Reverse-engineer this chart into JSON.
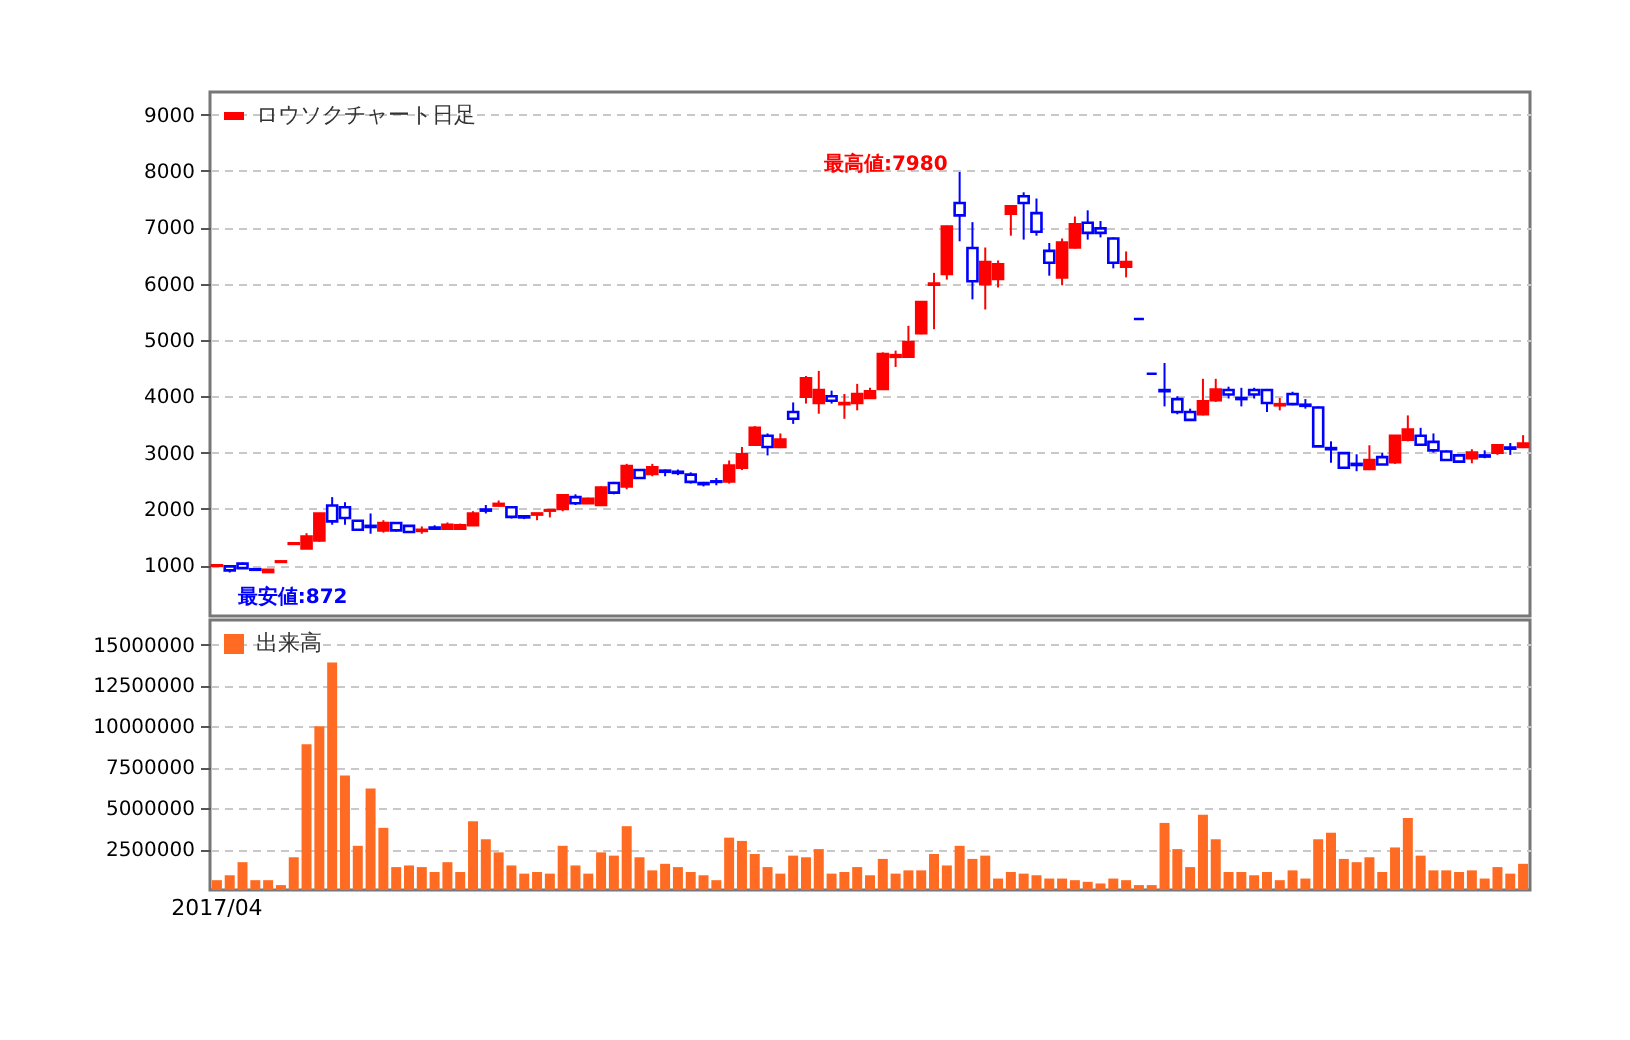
{
  "chart_data": [
    {
      "type": "candlestick",
      "categories": [
        null,
        null,
        null,
        null,
        null,
        null,
        null,
        null,
        null,
        null,
        null,
        null,
        null,
        null,
        null,
        null,
        null,
        null,
        null,
        null,
        null,
        null,
        null,
        null,
        null,
        null,
        null,
        null,
        null,
        null,
        null,
        null,
        null,
        null,
        null,
        null,
        null,
        null,
        null,
        null,
        null,
        null,
        null,
        null,
        null,
        null,
        null,
        null,
        null,
        null,
        null,
        null,
        null,
        null,
        null,
        null,
        null,
        null,
        null,
        null,
        null,
        null,
        null,
        null,
        null,
        null,
        null,
        null,
        null,
        null,
        null,
        null,
        null,
        null,
        null,
        null,
        null,
        null,
        null,
        null,
        null,
        null,
        null,
        null,
        null,
        null,
        null,
        null,
        null,
        null,
        null,
        null,
        null,
        null,
        null,
        null,
        null,
        null,
        null,
        null,
        null,
        null,
        null
      ],
      "series": [
        {
          "name": "ロウソクチャート日足",
          "color": "#ff0000",
          "type": "candlestick",
          "ohlc": [
            [
              990,
              1010,
              980,
              1000
            ],
            [
              980,
              990,
              872,
              910
            ],
            [
              1030,
              1050,
              940,
              950
            ],
            [
              930,
              940,
              900,
              920
            ],
            [
              880,
              930,
              880,
              920
            ],
            [
              1060,
              1080,
              1060,
              1070
            ],
            [
              1380,
              1400,
              1380,
              1390
            ],
            [
              1300,
              1570,
              1290,
              1510
            ],
            [
              1440,
              1930,
              1420,
              1920
            ],
            [
              2060,
              2210,
              1720,
              1780
            ],
            [
              2030,
              2120,
              1720,
              1840
            ],
            [
              1790,
              1800,
              1620,
              1630
            ],
            [
              1700,
              1920,
              1560,
              1680
            ],
            [
              1620,
              1800,
              1580,
              1750
            ],
            [
              1750,
              1760,
              1600,
              1620
            ],
            [
              1700,
              1710,
              1580,
              1590
            ],
            [
              1610,
              1690,
              1560,
              1630
            ],
            [
              1670,
              1710,
              1630,
              1650
            ],
            [
              1650,
              1760,
              1640,
              1720
            ],
            [
              1650,
              1740,
              1630,
              1710
            ],
            [
              1710,
              1960,
              1700,
              1920
            ],
            [
              1990,
              2070,
              1920,
              1970
            ],
            [
              2060,
              2150,
              2040,
              2090
            ],
            [
              2030,
              2050,
              1830,
              1860
            ],
            [
              1870,
              1880,
              1820,
              1850
            ],
            [
              1900,
              1930,
              1800,
              1920
            ],
            [
              1970,
              1990,
              1850,
              1980
            ],
            [
              2000,
              2260,
              1960,
              2240
            ],
            [
              2210,
              2260,
              2070,
              2100
            ],
            [
              2100,
              2200,
              2090,
              2180
            ],
            [
              2070,
              2400,
              2060,
              2380
            ],
            [
              2460,
              2480,
              2260,
              2290
            ],
            [
              2400,
              2800,
              2350,
              2760
            ],
            [
              2690,
              2700,
              2540,
              2550
            ],
            [
              2620,
              2800,
              2580,
              2740
            ],
            [
              2680,
              2700,
              2580,
              2660
            ],
            [
              2660,
              2700,
              2600,
              2640
            ],
            [
              2610,
              2650,
              2450,
              2480
            ],
            [
              2460,
              2480,
              2400,
              2440
            ],
            [
              2490,
              2550,
              2420,
              2480
            ],
            [
              2490,
              2860,
              2450,
              2770
            ],
            [
              2730,
              3100,
              2690,
              2970
            ],
            [
              3140,
              3470,
              3120,
              3440
            ],
            [
              3300,
              3340,
              2950,
              3100
            ],
            [
              3100,
              3340,
              3080,
              3230
            ],
            [
              3720,
              3890,
              3510,
              3600
            ],
            [
              3990,
              4360,
              3870,
              4320
            ],
            [
              3880,
              4450,
              3690,
              4110
            ],
            [
              4000,
              4100,
              3870,
              3920
            ],
            [
              3860,
              4040,
              3600,
              3880
            ],
            [
              3880,
              4220,
              3750,
              4040
            ],
            [
              3970,
              4150,
              3960,
              4090
            ],
            [
              4130,
              4780,
              4110,
              4750
            ],
            [
              4700,
              4810,
              4520,
              4730
            ],
            [
              4700,
              5250,
              4680,
              4960
            ],
            [
              5120,
              5690,
              5100,
              5670
            ],
            [
              5980,
              6190,
              5190,
              6000
            ],
            [
              6170,
              7030,
              6070,
              7010
            ],
            [
              7430,
              7980,
              6750,
              7210
            ],
            [
              6630,
              7090,
              5720,
              6040
            ],
            [
              5990,
              6640,
              5540,
              6380
            ],
            [
              6080,
              6410,
              5930,
              6340
            ],
            [
              7240,
              7380,
              6850,
              7370
            ],
            [
              7550,
              7620,
              6780,
              7430
            ],
            [
              7250,
              7510,
              6850,
              6920
            ],
            [
              6580,
              6720,
              6140,
              6370
            ],
            [
              6110,
              6800,
              5970,
              6730
            ],
            [
              6640,
              7190,
              6620,
              7050
            ],
            [
              7080,
              7300,
              6780,
              6900
            ],
            [
              6980,
              7110,
              6820,
              6900
            ],
            [
              6800,
              6820,
              6270,
              6370
            ],
            [
              6300,
              6570,
              6110,
              6380
            ],
            [
              5370,
              5370,
              5370,
              5370
            ],
            [
              4400,
              4400,
              4400,
              4400
            ],
            [
              4110,
              4590,
              3820,
              4090
            ],
            [
              3950,
              4000,
              3680,
              3720
            ],
            [
              3720,
              3780,
              3560,
              3580
            ],
            [
              3680,
              4310,
              3660,
              3910
            ],
            [
              3930,
              4310,
              3900,
              4120
            ],
            [
              4110,
              4170,
              3960,
              4030
            ],
            [
              3970,
              4150,
              3820,
              3950
            ],
            [
              4110,
              4150,
              3960,
              4030
            ],
            [
              4110,
              4130,
              3720,
              3880
            ],
            [
              3840,
              3970,
              3750,
              3860
            ],
            [
              4040,
              4080,
              3840,
              3860
            ],
            [
              3850,
              3950,
              3780,
              3830
            ],
            [
              3800,
              3820,
              3100,
              3110
            ],
            [
              3080,
              3200,
              2820,
              3060
            ],
            [
              2990,
              3000,
              2720,
              2730
            ],
            [
              2800,
              2970,
              2670,
              2780
            ],
            [
              2710,
              3130,
              2690,
              2870
            ],
            [
              2920,
              3000,
              2780,
              2790
            ],
            [
              2830,
              3310,
              2800,
              3300
            ],
            [
              3230,
              3660,
              3200,
              3410
            ],
            [
              3300,
              3440,
              3120,
              3140
            ],
            [
              3190,
              3340,
              3000,
              3040
            ],
            [
              3020,
              3040,
              2850,
              2870
            ],
            [
              2950,
              2970,
              2830,
              2840
            ],
            [
              2900,
              3060,
              2810,
              3000
            ],
            [
              2950,
              3040,
              2900,
              2930
            ],
            [
              3000,
              3150,
              2960,
              3130
            ],
            [
              3090,
              3170,
              2960,
              3070
            ],
            [
              3100,
              3310,
              3080,
              3160
            ]
          ],
          "colors": [
            "#ff0000",
            "#0000ff",
            "#0000ff",
            "#0000ff",
            "#ff0000",
            "#ff0000",
            "#ff0000",
            "#ff0000",
            "#ff0000",
            "#0000ff",
            "#0000ff",
            "#0000ff",
            "#0000ff",
            "#ff0000",
            "#0000ff",
            "#0000ff",
            "#ff0000",
            "#0000ff",
            "#ff0000",
            "#ff0000",
            "#ff0000",
            "#0000ff",
            "#ff0000",
            "#0000ff",
            "#0000ff",
            "#ff0000",
            "#ff0000",
            "#ff0000",
            "#0000ff",
            "#ff0000",
            "#ff0000",
            "#0000ff",
            "#ff0000",
            "#0000ff",
            "#ff0000",
            "#0000ff",
            "#0000ff",
            "#0000ff",
            "#0000ff",
            "#0000ff",
            "#ff0000",
            "#ff0000",
            "#ff0000",
            "#0000ff",
            "#ff0000",
            "#0000ff",
            "#ff0000",
            "#ff0000",
            "#0000ff",
            "#ff0000",
            "#ff0000",
            "#ff0000",
            "#ff0000",
            "#ff0000",
            "#ff0000",
            "#ff0000",
            "#ff0000",
            "#ff0000",
            "#0000ff",
            "#0000ff",
            "#ff0000",
            "#ff0000",
            "#ff0000",
            "#0000ff",
            "#0000ff",
            "#0000ff",
            "#ff0000",
            "#ff0000",
            "#0000ff",
            "#0000ff",
            "#0000ff",
            "#ff0000",
            "#0000ff",
            "#0000ff",
            "#0000ff",
            "#0000ff",
            "#0000ff",
            "#ff0000",
            "#ff0000",
            "#0000ff",
            "#0000ff",
            "#0000ff",
            "#0000ff",
            "#ff0000",
            "#0000ff",
            "#0000ff",
            "#0000ff",
            "#0000ff",
            "#0000ff",
            "#0000ff",
            "#ff0000",
            "#0000ff",
            "#ff0000",
            "#ff0000",
            "#0000ff",
            "#0000ff",
            "#0000ff",
            "#0000ff",
            "#ff0000",
            "#0000ff",
            "#ff0000",
            "#0000ff",
            "#ff0000"
          ]
        }
      ],
      "ylim": [
        100,
        9400
      ],
      "yticks": [
        1000,
        2000,
        3000,
        4000,
        5000,
        6000,
        7000,
        8000,
        9000
      ],
      "grid": "y",
      "legend": "top left",
      "tick_labels": "y",
      "annotations": [
        "最高値:7980",
        "最安値:872"
      ]
    },
    {
      "type": "bar",
      "categories": [
        "2017/04",
        null,
        null,
        null,
        null,
        null,
        null,
        null,
        null,
        null,
        null,
        null,
        null,
        null,
        null,
        null,
        null,
        null,
        null,
        null,
        null,
        null,
        null,
        null,
        null,
        null,
        null,
        null,
        null,
        null,
        null,
        null,
        null,
        null,
        null,
        null,
        null,
        null,
        null,
        null,
        null,
        null,
        null,
        null,
        null,
        null,
        null,
        null,
        null,
        null,
        null,
        null,
        null,
        null,
        null,
        null,
        null,
        null,
        null,
        null,
        null,
        null,
        null,
        null,
        null,
        null,
        null,
        null,
        null,
        null,
        null,
        null,
        null,
        null,
        null,
        null,
        null,
        null,
        null,
        null,
        null,
        null,
        null,
        null,
        null,
        null,
        null,
        null,
        null,
        null,
        null,
        null,
        null,
        null,
        null,
        null,
        null,
        null,
        null,
        null,
        null,
        null,
        null
      ],
      "series": [
        {
          "name": "出来高",
          "color": "#ff6b22",
          "values": [
            600000,
            900000,
            1700000,
            600000,
            600000,
            300000,
            2000000,
            8900000,
            10000000,
            13900000,
            7000000,
            2700000,
            6200000,
            3800000,
            1400000,
            1500000,
            1400000,
            1100000,
            1700000,
            1100000,
            4200000,
            3100000,
            2300000,
            1500000,
            1000000,
            1100000,
            1000000,
            2700000,
            1500000,
            1000000,
            2300000,
            2100000,
            3900000,
            2000000,
            1200000,
            1600000,
            1400000,
            1100000,
            900000,
            600000,
            3200000,
            3000000,
            2200000,
            1400000,
            1000000,
            2100000,
            2000000,
            2500000,
            1000000,
            1100000,
            1400000,
            900000,
            1900000,
            1000000,
            1200000,
            1200000,
            2200000,
            1500000,
            2700000,
            1900000,
            2100000,
            700000,
            1100000,
            1000000,
            900000,
            700000,
            700000,
            600000,
            500000,
            400000,
            700000,
            600000,
            300000,
            300000,
            4100000,
            2500000,
            1400000,
            4600000,
            3100000,
            1100000,
            1100000,
            900000,
            1100000,
            600000,
            1200000,
            700000,
            3100000,
            3500000,
            1900000,
            1700000,
            2000000,
            1100000,
            2600000,
            4400000,
            2100000,
            1200000,
            1200000,
            1100000,
            1200000,
            700000,
            1400000,
            1000000,
            1600000
          ]
        }
      ],
      "ylim": [
        0,
        16500000
      ],
      "yticks": [
        2500000,
        5000000,
        7500000,
        10000000,
        12500000,
        15000000
      ],
      "grid": "y",
      "legend": "top left"
    }
  ]
}
